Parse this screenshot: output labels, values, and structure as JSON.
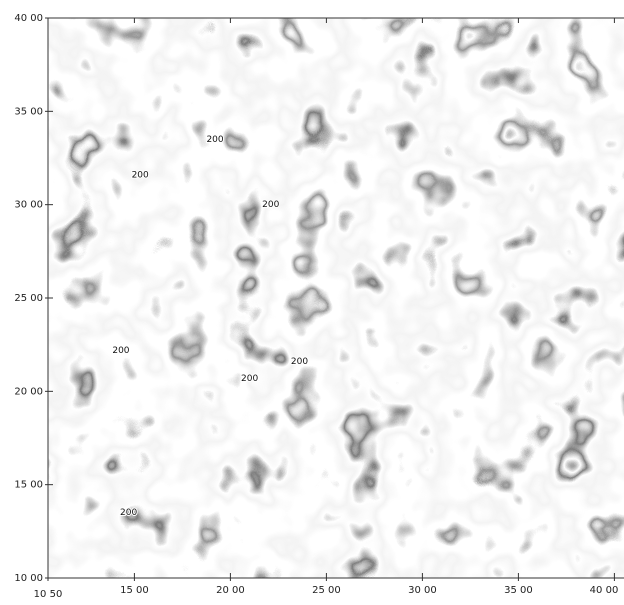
{
  "chart_data": {
    "type": "contour",
    "xlim": [
      10.5,
      40.5
    ],
    "ylim": [
      10,
      40
    ],
    "xticks": [
      {
        "value": 10.5,
        "label": "10 50"
      },
      {
        "value": 15,
        "label": "15 00"
      },
      {
        "value": 20,
        "label": "20 00"
      },
      {
        "value": 25,
        "label": "25 00"
      },
      {
        "value": 30,
        "label": "30 00"
      },
      {
        "value": 35,
        "label": "35 00"
      },
      {
        "value": 40,
        "label": "40 00"
      }
    ],
    "yticks": [
      {
        "value": 10,
        "label": "10 00"
      },
      {
        "value": 15,
        "label": "15 00"
      },
      {
        "value": 20,
        "label": "20 00"
      },
      {
        "value": 25,
        "label": "25 00"
      },
      {
        "value": 30,
        "label": "30 00"
      },
      {
        "value": 35,
        "label": "35 00"
      },
      {
        "value": 40,
        "label": "40 00"
      }
    ],
    "annotations": [
      {
        "text": "200",
        "x": 15.3,
        "y": 31.6
      },
      {
        "text": "200",
        "x": 19.2,
        "y": 33.5
      },
      {
        "text": "200",
        "x": 14.3,
        "y": 22.2
      },
      {
        "text": "200",
        "x": 21.0,
        "y": 20.7
      },
      {
        "text": "200",
        "x": 23.6,
        "y": 21.6
      },
      {
        "text": "200",
        "x": 14.7,
        "y": 13.5
      },
      {
        "text": "200",
        "x": 22.1,
        "y": 30.0
      }
    ]
  }
}
